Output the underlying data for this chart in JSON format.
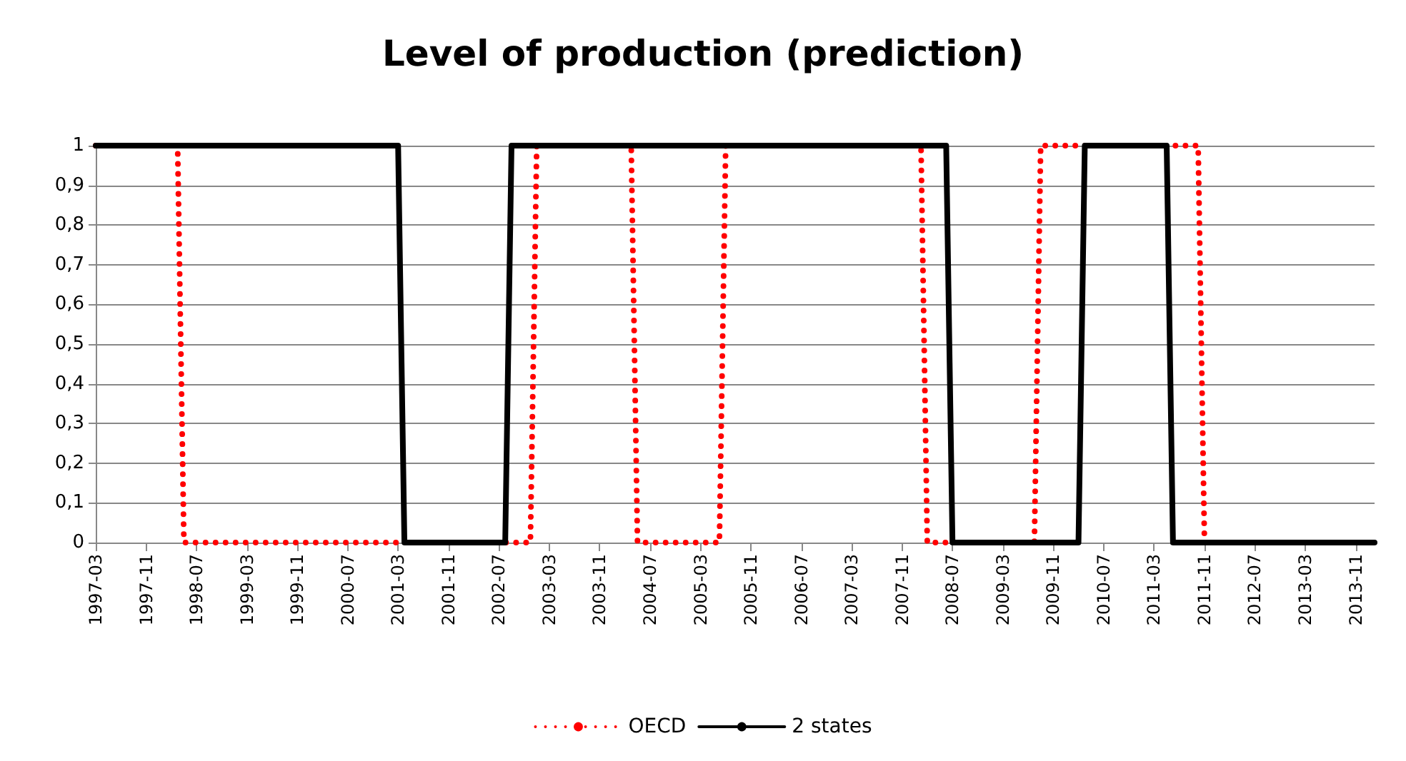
{
  "chart_data": {
    "type": "line",
    "title": "Level of production (prediction)",
    "series": [
      {
        "name": "OECD",
        "color": "#ff0000",
        "line_style": "dotted",
        "x": [
          "1997-03",
          "1998-04",
          "1998-05",
          "2002-12",
          "2003-01",
          "2004-04",
          "2004-05",
          "2005-06",
          "2005-07",
          "2008-02",
          "2008-03",
          "2009-08",
          "2009-09",
          "2011-10",
          "2011-11",
          "2014-02"
        ],
        "values": [
          1,
          1,
          0,
          0,
          1,
          1,
          0,
          0,
          1,
          1,
          0,
          0,
          1,
          1,
          0,
          0
        ]
      },
      {
        "name": "2 states",
        "color": "#000000",
        "line_style": "solid",
        "x": [
          "1997-03",
          "2001-03",
          "2001-04",
          "2002-08",
          "2002-09",
          "2008-06",
          "2008-07",
          "2010-03",
          "2010-04",
          "2011-05",
          "2011-06",
          "2014-02"
        ],
        "values": [
          1,
          1,
          0,
          0,
          1,
          1,
          0,
          0,
          1,
          1,
          0,
          0
        ]
      }
    ],
    "xlim": [
      "1997-03",
      "2014-02"
    ],
    "xticks": [
      "1997-03",
      "1997-11",
      "1998-07",
      "1999-03",
      "1999-11",
      "2000-07",
      "2001-03",
      "2001-11",
      "2002-07",
      "2003-03",
      "2003-11",
      "2004-07",
      "2005-03",
      "2005-11",
      "2006-07",
      "2007-03",
      "2007-11",
      "2008-07",
      "2009-03",
      "2009-11",
      "2010-07",
      "2011-03",
      "2011-11",
      "2012-07",
      "2013-03",
      "2013-11"
    ],
    "ylim": [
      0,
      1
    ],
    "yticks": [
      0,
      {
        "value": 0.1,
        "label": "0,1"
      },
      {
        "value": 0.2,
        "label": "0,2"
      },
      {
        "value": 0.3,
        "label": "0,3"
      },
      {
        "value": 0.4,
        "label": "0,4"
      },
      {
        "value": 0.5,
        "label": "0,5"
      },
      {
        "value": 0.6,
        "label": "0,6"
      },
      {
        "value": 0.7,
        "label": "0,7"
      },
      {
        "value": 0.8,
        "label": "0,8"
      },
      {
        "value": 0.9,
        "label": "0,9"
      },
      1
    ],
    "grid": "y",
    "legend": "bottom",
    "marker": "none"
  }
}
